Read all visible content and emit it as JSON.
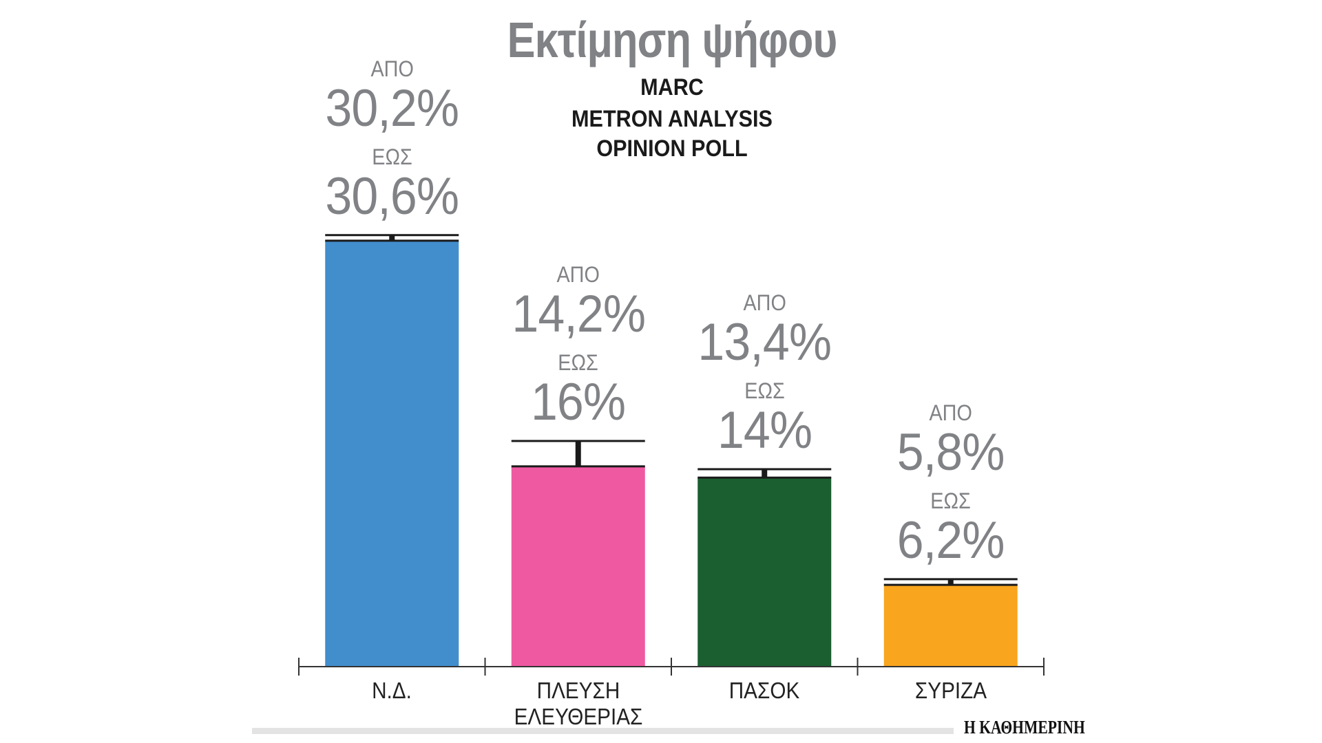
{
  "chart_data": {
    "type": "bar",
    "title": "Εκτίμηση ψήφου",
    "subtitle": [
      "MARC",
      "METRON ANALYSIS",
      "OPINION POLL"
    ],
    "range_from_label": "ΑΠΟ",
    "range_to_label": "ΕΩΣ",
    "categories": [
      "Ν.Δ.",
      "ΠΛΕΥΣΗ ΕΛΕΥΘΕΡΙΑΣ",
      "ΠΑΣΟΚ",
      "ΣΥΡΙΖΑ"
    ],
    "low": [
      30.2,
      14.2,
      13.4,
      5.8
    ],
    "high": [
      30.6,
      16,
      14,
      6.2
    ],
    "low_labels": [
      "30,2%",
      "14,2%",
      "13,4%",
      "5,8%"
    ],
    "high_labels": [
      "30,6%",
      "16%",
      "14%",
      "6,2%"
    ],
    "colors": [
      "#428ECD",
      "#EF59A1",
      "#1B5E30",
      "#F9A51D"
    ],
    "ylim": [
      0,
      30.6
    ],
    "xlabel": "",
    "ylabel": "",
    "grid": false,
    "legend": "none"
  },
  "footer": {
    "logo": "Η ΚΑΘΗΜΕΡΙΝΗ"
  }
}
